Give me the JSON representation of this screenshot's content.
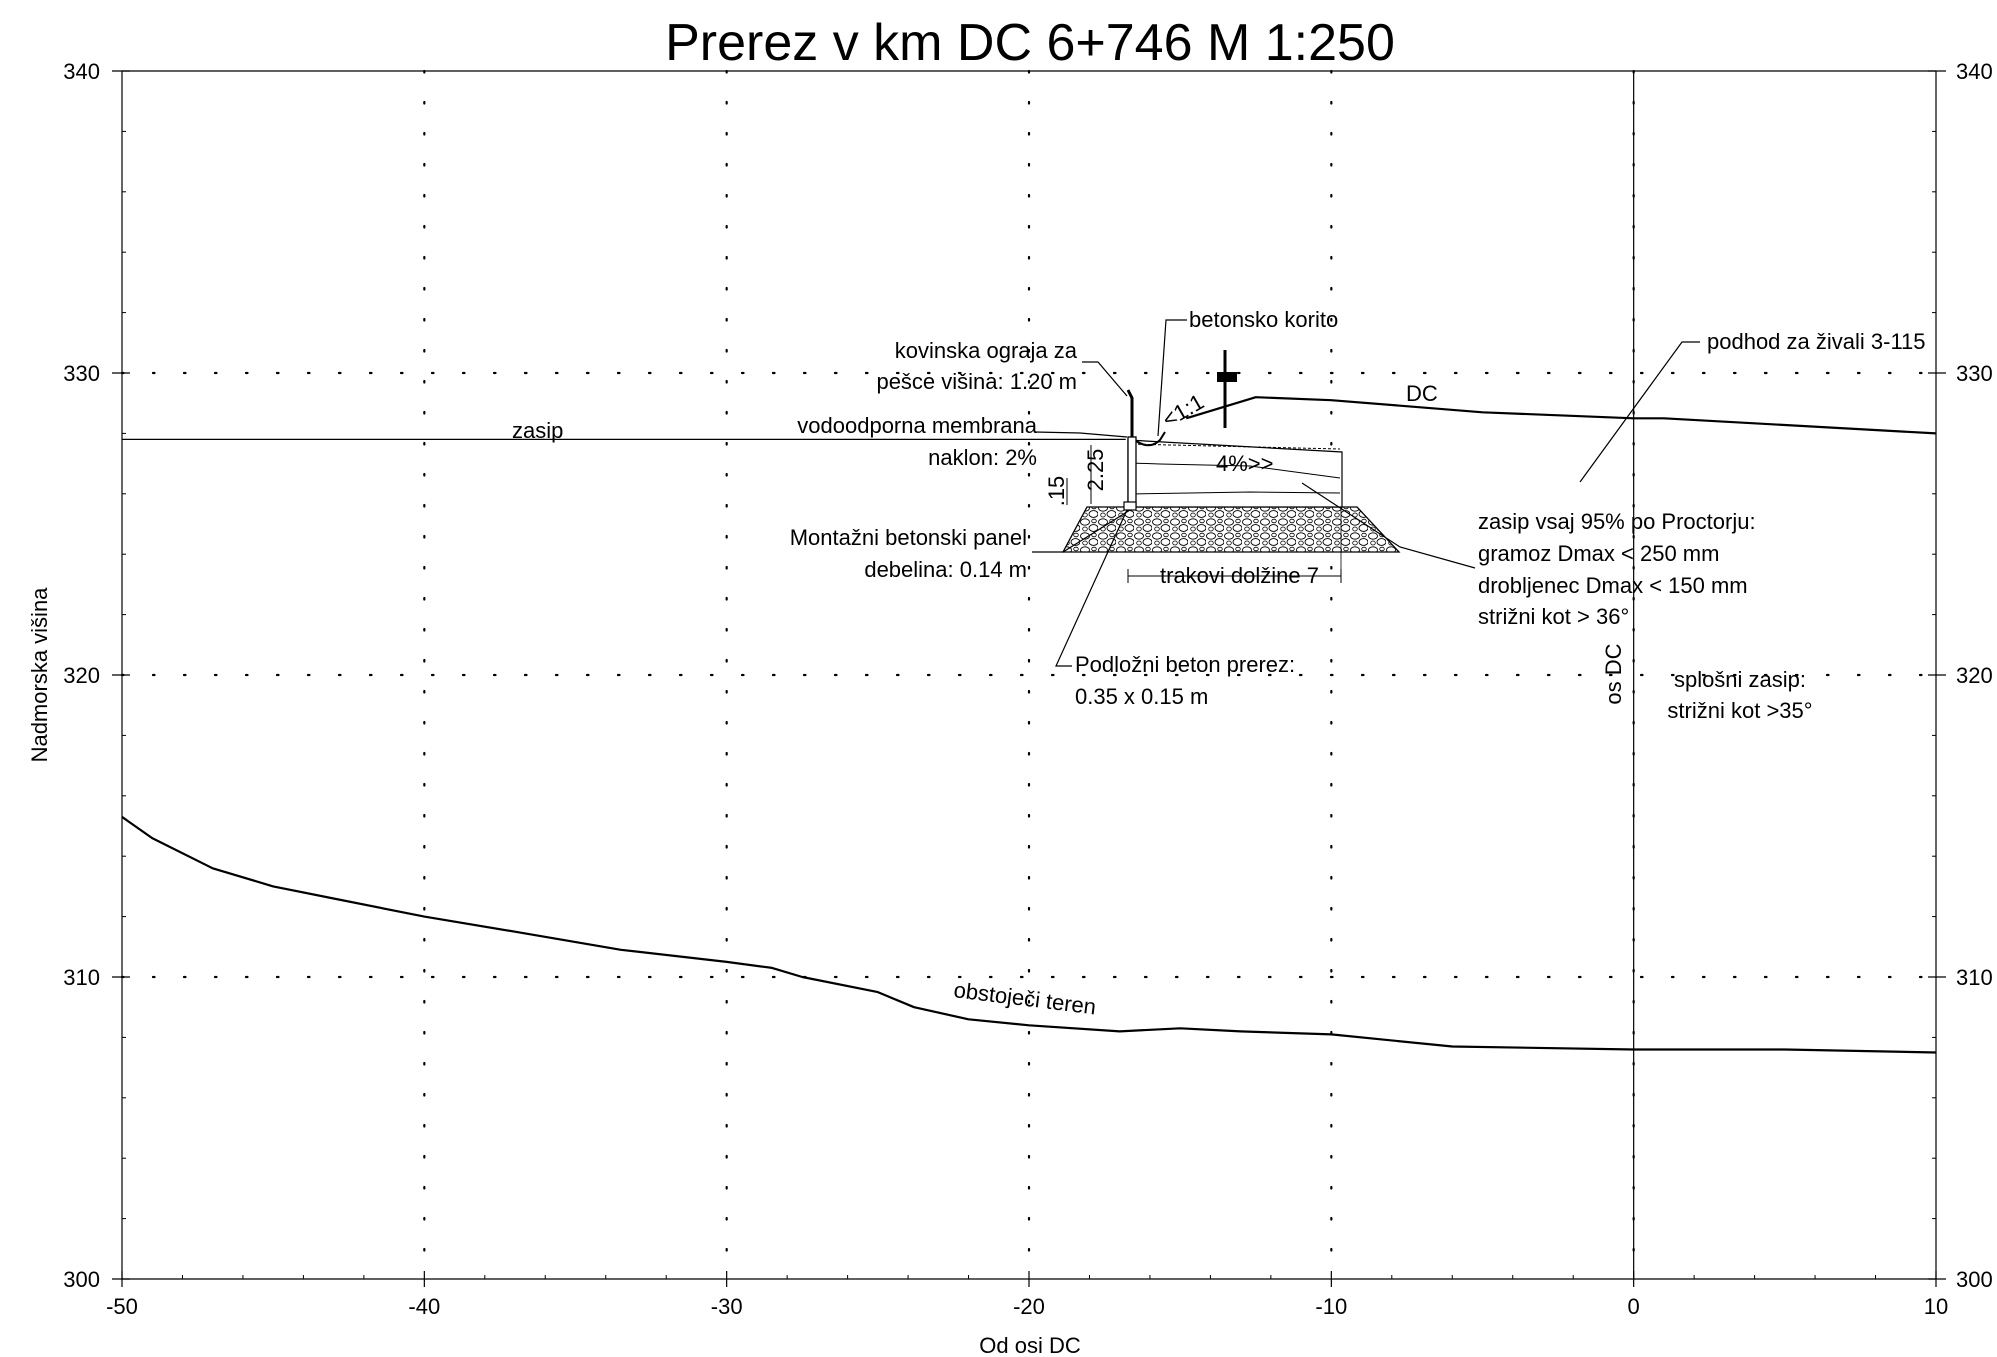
{
  "chart_data": {
    "type": "line",
    "title": "Prerez v km DC 6+746 M 1:250",
    "xlabel": "Od osi DC",
    "ylabel": "Nadmorska višina",
    "xlim": [
      -50,
      10
    ],
    "ylim": [
      300,
      340
    ],
    "x_ticks": [
      "-50",
      "-40",
      "-30",
      "-20",
      "-10",
      "0",
      "10"
    ],
    "y_ticks": [
      "300",
      "310",
      "320",
      "330",
      "340"
    ],
    "grid": "dotted",
    "series": [
      {
        "name": "obstoječi teren",
        "points": [
          [
            -50,
            315.3
          ],
          [
            -49,
            314.6
          ],
          [
            -47,
            313.6
          ],
          [
            -45,
            313.0
          ],
          [
            -43,
            312.6
          ],
          [
            -40,
            312.0
          ],
          [
            -37,
            311.5
          ],
          [
            -33.5,
            310.9
          ],
          [
            -30,
            310.5
          ],
          [
            -28.5,
            310.3
          ],
          [
            -27.5,
            310.0
          ],
          [
            -25,
            309.5
          ],
          [
            -23.8,
            309.0
          ],
          [
            -22,
            308.6
          ],
          [
            -20,
            308.4
          ],
          [
            -17,
            308.2
          ],
          [
            -15,
            308.3
          ],
          [
            -13,
            308.2
          ],
          [
            -10,
            308.1
          ],
          [
            -6,
            307.7
          ],
          [
            0,
            307.6
          ],
          [
            5,
            307.6
          ],
          [
            10,
            307.5
          ]
        ]
      },
      {
        "name": "DC",
        "points": [
          [
            -14.8,
            328.5
          ],
          [
            -12.5,
            329.2
          ],
          [
            -10,
            329.1
          ],
          [
            -5,
            328.7
          ],
          [
            0,
            328.5
          ],
          [
            1,
            328.5
          ],
          [
            10,
            328.0
          ]
        ]
      },
      {
        "name": "zasip",
        "points": [
          [
            -50,
            327.8
          ],
          [
            -16.8,
            327.8
          ]
        ]
      }
    ],
    "reference_lines": [
      {
        "name": "os DC",
        "x": 0
      }
    ],
    "annotations": [
      {
        "text": "zasip"
      },
      {
        "text": "DC"
      },
      {
        "text": "obstoječi teren"
      },
      {
        "text": "os DC"
      },
      {
        "text": "kovinska ograja za"
      },
      {
        "text": "pešce višina: 1.20 m"
      },
      {
        "text": "betonsko korito"
      },
      {
        "text": "vodoodporna membrana"
      },
      {
        "text": "naklon: 2%"
      },
      {
        "text": "Montažni betonski panel"
      },
      {
        "text": "debelina: 0.14 m"
      },
      {
        "text": "trakovi dolžine 7"
      },
      {
        "text": "Podložni beton prerez:"
      },
      {
        "text": "0.35 x 0.15 m"
      },
      {
        "text": "podhod za živali 3-115"
      },
      {
        "text": "zasip vsaj 95% po Proctorju:"
      },
      {
        "text": "gramoz Dmax < 250 mm"
      },
      {
        "text": "drobljenec Dmax < 150 mm"
      },
      {
        "text": "strižni kot > 36°"
      },
      {
        "text": "splošni zasip:"
      },
      {
        "text": "strižni kot >35°"
      },
      {
        "text": "4%>>"
      },
      {
        "text": "<1:1"
      },
      {
        "text": "2.25"
      },
      {
        "text": ".15"
      }
    ]
  }
}
